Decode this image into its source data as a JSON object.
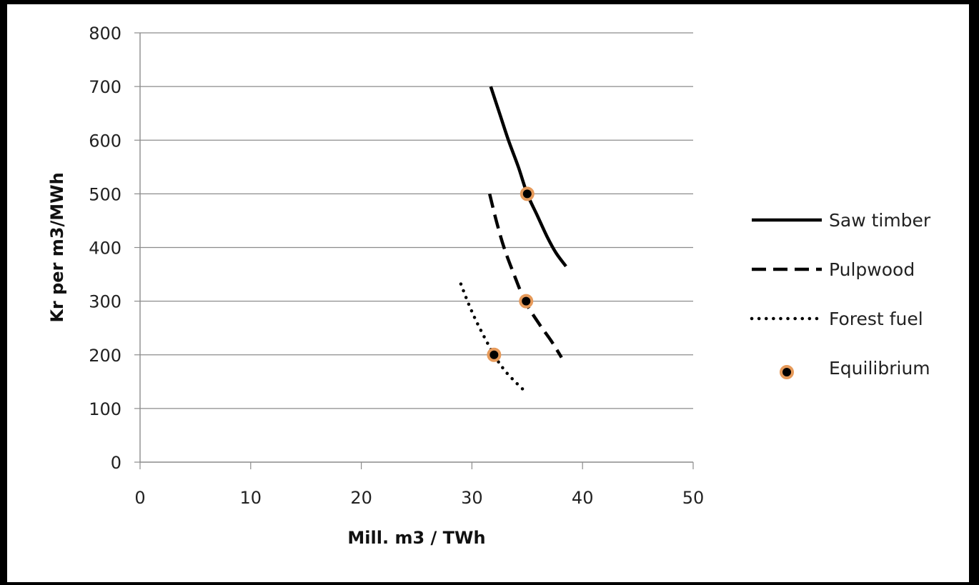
{
  "chart_data": {
    "type": "line",
    "title": "",
    "xlabel": "Mill. m3 / TWh",
    "ylabel": "Kr per m3/MWh",
    "xlim": [
      0,
      50
    ],
    "ylim": [
      0,
      800
    ],
    "xticks": [
      0,
      10,
      20,
      30,
      40,
      50
    ],
    "yticks": [
      0,
      100,
      200,
      300,
      400,
      500,
      600,
      700,
      800
    ],
    "grid": "horizontal",
    "legend_position": "right",
    "series": [
      {
        "name": "Saw timber",
        "style": "solid",
        "color": "#000000",
        "points": [
          [
            31.7,
            700
          ],
          [
            32.5,
            650
          ],
          [
            33.3,
            600
          ],
          [
            34.2,
            550
          ],
          [
            35.0,
            500
          ],
          [
            35.9,
            460
          ],
          [
            36.8,
            420
          ],
          [
            37.6,
            390
          ],
          [
            38.5,
            365
          ]
        ]
      },
      {
        "name": "Pulpwood",
        "style": "dashed",
        "color": "#000000",
        "points": [
          [
            31.6,
            500
          ],
          [
            32.2,
            450
          ],
          [
            32.9,
            400
          ],
          [
            33.8,
            350
          ],
          [
            34.8,
            300
          ],
          [
            36.0,
            260
          ],
          [
            37.2,
            225
          ],
          [
            38.1,
            195
          ]
        ]
      },
      {
        "name": "Forest fuel",
        "style": "dotted",
        "color": "#000000",
        "points": [
          [
            29.0,
            332
          ],
          [
            29.8,
            290
          ],
          [
            30.7,
            250
          ],
          [
            32.0,
            200
          ],
          [
            33.0,
            170
          ],
          [
            34.0,
            148
          ],
          [
            34.8,
            132
          ]
        ]
      }
    ],
    "markers": {
      "name": "Equilibrium",
      "fill": "#000000",
      "edge": "#e69a5a",
      "points": [
        [
          35.0,
          500
        ],
        [
          34.9,
          300
        ],
        [
          32.0,
          200
        ]
      ]
    }
  }
}
